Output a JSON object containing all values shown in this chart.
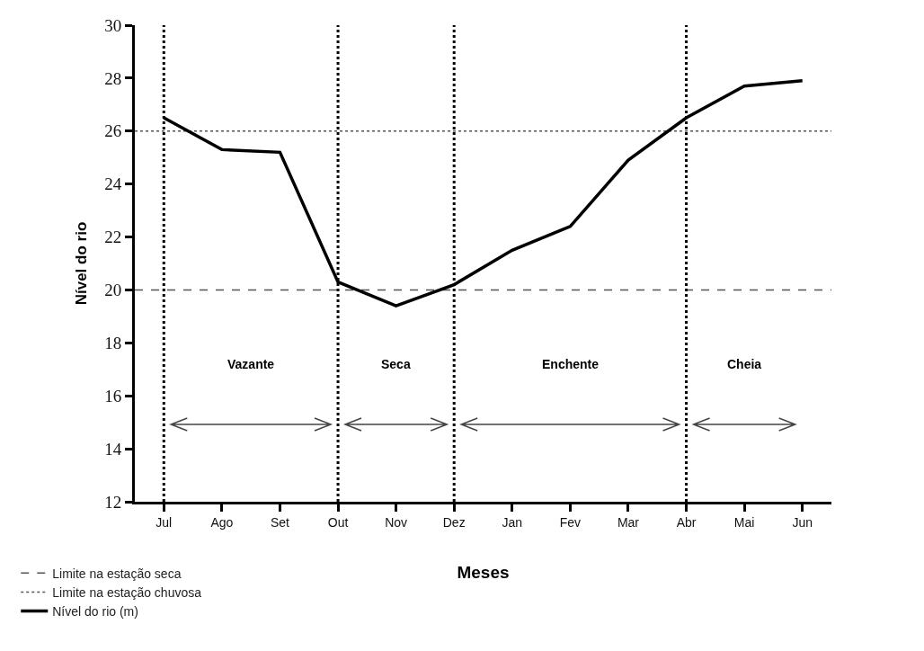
{
  "chart_data": {
    "type": "line",
    "xlabel": "Meses",
    "ylabel": "Nível do rio",
    "categories": [
      "Jul",
      "Ago",
      "Set",
      "Out",
      "Nov",
      "Dez",
      "Jan",
      "Fev",
      "Mar",
      "Abr",
      "Mai",
      "Jun"
    ],
    "ylim": [
      12,
      30
    ],
    "yticks": [
      12,
      14,
      16,
      18,
      20,
      22,
      24,
      26,
      28,
      30
    ],
    "grid": false,
    "legend": "bottom left",
    "marker": "none",
    "series": [
      {
        "name": "Nível do rio (m)",
        "color": "#000000",
        "values": [
          26.5,
          25.3,
          25.2,
          20.3,
          19.4,
          20.2,
          21.5,
          22.4,
          24.9,
          26.5,
          27.7,
          27.9
        ]
      }
    ],
    "ref_lines": [
      {
        "axis": "y",
        "value": 20,
        "label": "Limite na estação seca",
        "line_style": "dashed",
        "color": "#555555"
      },
      {
        "axis": "y",
        "value": 26,
        "label": "Limite na estação chuvosa",
        "line_style": "dotted",
        "color": "#555555"
      },
      {
        "axis": "x",
        "value": "Jul",
        "line_style": "dotted",
        "color": "#000000"
      },
      {
        "axis": "x",
        "value": "Out",
        "line_style": "dotted",
        "color": "#000000"
      },
      {
        "axis": "x",
        "value": "Dez",
        "line_style": "dotted",
        "color": "#000000"
      },
      {
        "axis": "x",
        "value": "Abr",
        "line_style": "dotted",
        "color": "#000000"
      }
    ],
    "annotations": [
      "Vazante",
      "Seca",
      "Enchente",
      "Cheia"
    ]
  }
}
